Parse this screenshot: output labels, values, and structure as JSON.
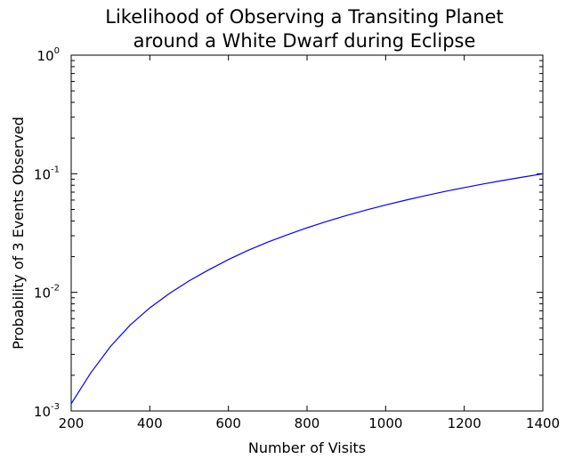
{
  "chart_data": {
    "type": "line",
    "title_lines": [
      "Likelihood of Observing a Transiting Planet",
      "around a White Dwarf during Eclipse"
    ],
    "xlabel": "Number of Visits",
    "ylabel": "Probability of 3 Events Observed",
    "xlim": [
      200,
      1400
    ],
    "ylim": [
      0.001,
      1
    ],
    "yscale": "log",
    "x_ticks": [
      "200",
      "400",
      "600",
      "800",
      "1000",
      "1200",
      "1400"
    ],
    "y_ticks": [
      {
        "base": "10",
        "exp": "-3",
        "value": 0.001
      },
      {
        "base": "10",
        "exp": "-2",
        "value": 0.01
      },
      {
        "base": "10",
        "exp": "-1",
        "value": 0.1
      },
      {
        "base": "10",
        "exp": "0",
        "value": 1
      }
    ],
    "grid": false,
    "legend": "none",
    "line_color": "#0000ff",
    "series": [
      {
        "x": [
          200,
          250,
          300,
          350,
          400,
          450,
          500,
          550,
          600,
          650,
          700,
          750,
          800,
          850,
          900,
          950,
          1000,
          1050,
          1100,
          1150,
          1200,
          1250,
          1300,
          1350,
          1400
        ],
        "y": [
          0.00115,
          0.0021,
          0.0035,
          0.0053,
          0.0074,
          0.0098,
          0.0125,
          0.0155,
          0.0189,
          0.0226,
          0.0265,
          0.0306,
          0.035,
          0.0396,
          0.0444,
          0.0494,
          0.0545,
          0.0598,
          0.0652,
          0.0708,
          0.0764,
          0.0822,
          0.088,
          0.0939,
          0.0998
        ]
      }
    ]
  }
}
